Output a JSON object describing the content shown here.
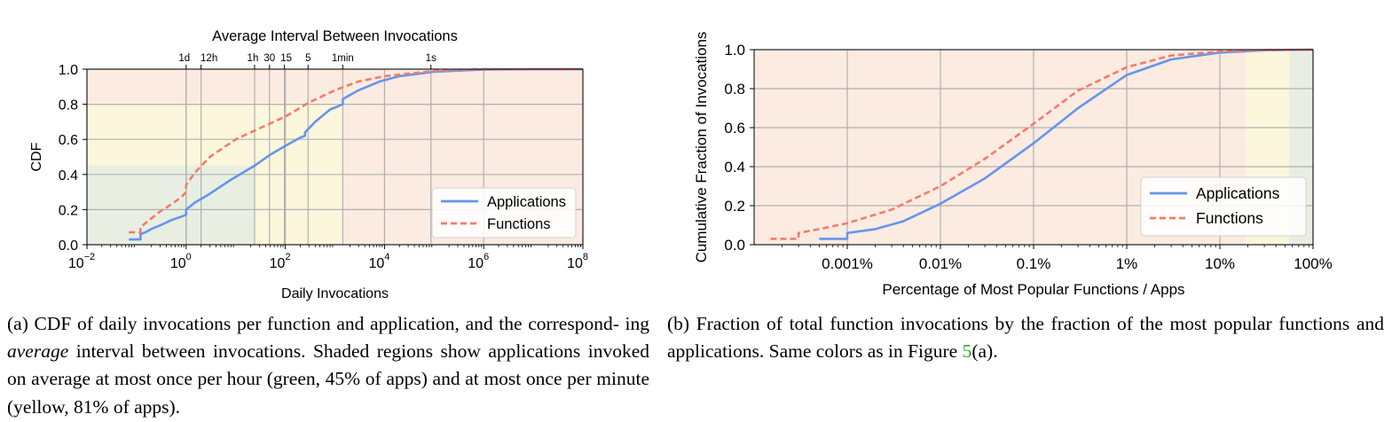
{
  "chart_data": [
    {
      "type": "line",
      "top_label": "Average Interval Between Invocations",
      "top_ticks": [
        {
          "label": "1d",
          "x": 1
        },
        {
          "label": "12h",
          "x": 2
        },
        {
          "label": "1h",
          "x": 24
        },
        {
          "label": "30",
          "x": 48
        },
        {
          "label": "15",
          "x": 96
        },
        {
          "label": "5",
          "x": 288
        },
        {
          "label": "1min",
          "x": 1440
        },
        {
          "label": "1s",
          "x": 86400
        }
      ],
      "xlabel": "Daily Invocations",
      "ylabel": "CDF",
      "x_scale": "log",
      "xlim": [
        0.01,
        100000000
      ],
      "ylim": [
        0,
        1
      ],
      "x_ticks": [
        {
          "base": "10",
          "exp": "−2",
          "v": 0.01
        },
        {
          "base": "10",
          "exp": "0",
          "v": 1
        },
        {
          "base": "10",
          "exp": "2",
          "v": 100
        },
        {
          "base": "10",
          "exp": "4",
          "v": 10000
        },
        {
          "base": "10",
          "exp": "6",
          "v": 1000000
        },
        {
          "base": "10",
          "exp": "8",
          "v": 100000000
        }
      ],
      "y_ticks": [
        "0.0",
        "0.2",
        "0.4",
        "0.6",
        "0.8",
        "1.0"
      ],
      "grid": true,
      "legend_position": "lower-right",
      "shaded_regions": [
        {
          "color": "#e8efe2",
          "x_to": 24,
          "y_to": 0.45
        },
        {
          "color": "#fcf6dc",
          "x_to": 1440,
          "y_to": 0.81
        },
        {
          "color": "#fbebe1",
          "x_to": 100000000,
          "y_to": 1.0
        }
      ],
      "series": [
        {
          "name": "Applications",
          "color": "#6495ed",
          "dash": false,
          "x": [
            0.07,
            0.12,
            0.12,
            0.15,
            0.2,
            0.3,
            0.5,
            0.8,
            1,
            1,
            1.5,
            3,
            8,
            24,
            48,
            96,
            200,
            250,
            250,
            400,
            800,
            1200,
            1440,
            1440,
            3000,
            8000,
            20000,
            100000,
            1000000,
            10000000,
            100000000
          ],
          "y": [
            0.03,
            0.03,
            0.06,
            0.07,
            0.09,
            0.11,
            0.14,
            0.16,
            0.17,
            0.2,
            0.24,
            0.29,
            0.37,
            0.45,
            0.51,
            0.56,
            0.61,
            0.62,
            0.64,
            0.7,
            0.77,
            0.79,
            0.8,
            0.83,
            0.88,
            0.93,
            0.96,
            0.985,
            0.998,
            1.0,
            1.0
          ]
        },
        {
          "name": "Functions",
          "color": "#f47b6b",
          "dash": true,
          "x": [
            0.07,
            0.12,
            0.12,
            0.2,
            0.3,
            0.5,
            0.8,
            1,
            1,
            1.5,
            3,
            10,
            24,
            100,
            300,
            1000,
            3000,
            10000,
            100000,
            1000000,
            100000000
          ],
          "y": [
            0.07,
            0.07,
            0.1,
            0.15,
            0.19,
            0.23,
            0.27,
            0.3,
            0.34,
            0.41,
            0.5,
            0.6,
            0.65,
            0.73,
            0.81,
            0.88,
            0.93,
            0.96,
            0.99,
            1.0,
            1.0
          ]
        }
      ]
    },
    {
      "type": "line",
      "xlabel": "Percentage of Most Popular Functions / Apps",
      "ylabel": "Cumulative Fraction of Invocations",
      "x_scale": "log",
      "xlim": [
        0.0001,
        100
      ],
      "ylim": [
        0,
        1
      ],
      "x_ticks": [
        {
          "label": "0.001%",
          "v": 0.001
        },
        {
          "label": "0.01%",
          "v": 0.01
        },
        {
          "label": "0.1%",
          "v": 0.1
        },
        {
          "label": "1%",
          "v": 1
        },
        {
          "label": "10%",
          "v": 10
        },
        {
          "label": "100%",
          "v": 100
        }
      ],
      "y_ticks": [
        "0.0",
        "0.2",
        "0.4",
        "0.6",
        "0.8",
        "1.0"
      ],
      "grid": true,
      "legend_position": "lower-right",
      "shaded_regions": [
        {
          "color": "#fbebe1",
          "x_from": 0.0001,
          "x_to": 19
        },
        {
          "color": "#fcf6dc",
          "x_from": 19,
          "x_to": 55
        },
        {
          "color": "#e8efe2",
          "x_from": 55,
          "x_to": 100
        }
      ],
      "series": [
        {
          "name": "Applications",
          "color": "#6495ed",
          "dash": false,
          "x": [
            0.0005,
            0.001,
            0.001,
            0.002,
            0.004,
            0.01,
            0.03,
            0.1,
            0.3,
            1,
            3,
            10,
            30,
            100
          ],
          "y": [
            0.03,
            0.03,
            0.06,
            0.08,
            0.12,
            0.21,
            0.34,
            0.52,
            0.7,
            0.87,
            0.95,
            0.985,
            0.997,
            1.0
          ]
        },
        {
          "name": "Functions",
          "color": "#f47b6b",
          "dash": true,
          "x": [
            0.00015,
            0.0003,
            0.0003,
            0.0005,
            0.001,
            0.003,
            0.01,
            0.03,
            0.1,
            0.3,
            1,
            3,
            10,
            30,
            100
          ],
          "y": [
            0.03,
            0.03,
            0.06,
            0.08,
            0.11,
            0.18,
            0.3,
            0.44,
            0.62,
            0.79,
            0.91,
            0.97,
            0.99,
            0.998,
            1.0
          ]
        }
      ]
    }
  ],
  "captions": {
    "a": {
      "prefix": "(a) CDF of daily invocations per function and application, and the correspond- ing ",
      "emph": "average",
      "suffix": " interval between invocations. Shaded regions show applications invoked on average at most once per hour (green, 45% of apps) and at most once per minute (yellow, 81% of apps)."
    },
    "b": {
      "prefix": "(b) Fraction of total function invocations by the fraction of the most popular functions and applications. Same colors as in Figure ",
      "ref": "5",
      "suffix": "(a)."
    }
  }
}
